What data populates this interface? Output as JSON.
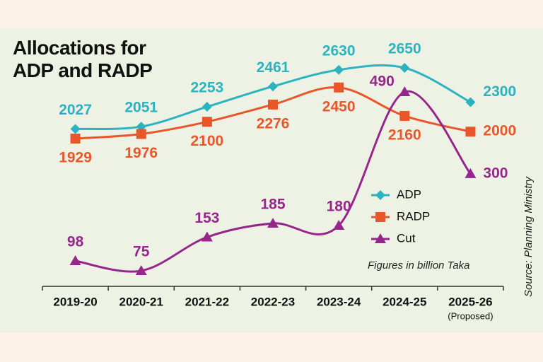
{
  "chart_data": {
    "type": "line",
    "title": "Allocations for ADP and RADP",
    "categories": [
      "2019-20",
      "2020-21",
      "2021-22",
      "2022-23",
      "2023-24",
      "2024-25",
      "2025-26"
    ],
    "category_note": "(Proposed)",
    "series": [
      {
        "name": "ADP",
        "color": "#2bb3c0",
        "marker": "diamond",
        "values": [
          2027,
          2051,
          2253,
          2461,
          2630,
          2650,
          2300
        ]
      },
      {
        "name": "RADP",
        "color": "#e8562a",
        "marker": "square",
        "values": [
          1929,
          1976,
          2100,
          2276,
          2450,
          2160,
          2000
        ]
      },
      {
        "name": "Cut",
        "color": "#96268c",
        "marker": "triangle",
        "axis": "y2",
        "values": [
          98,
          75,
          153,
          185,
          180,
          490,
          300
        ]
      }
    ],
    "annotation": "Figures in billion Taka",
    "source": "Source: Planning Ministry"
  }
}
